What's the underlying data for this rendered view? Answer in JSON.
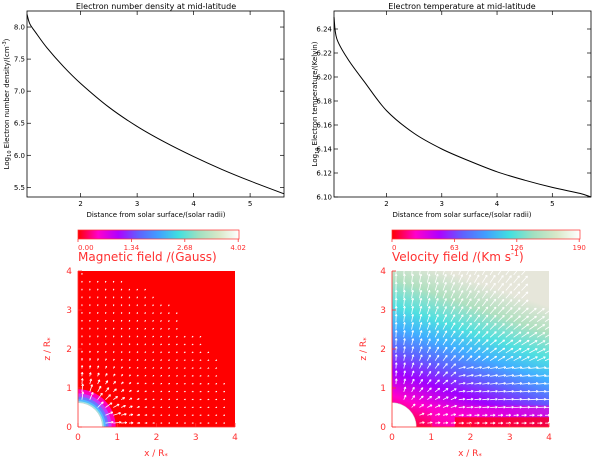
{
  "chart_data": [
    {
      "type": "line",
      "title": "Electron number density at mid-latitude",
      "xlabel": "Distance from solar surface/(solar radii)",
      "ylabel": "Log10 Electron number density/(cm^-3)",
      "xlim": [
        1.05,
        5.6
      ],
      "ylim": [
        5.35,
        8.25
      ],
      "xticks": [
        2,
        3,
        4,
        5
      ],
      "yticks": [
        5.5,
        6.0,
        6.5,
        7.0,
        7.5,
        8.0
      ],
      "x": [
        1.05,
        1.1,
        1.2,
        1.4,
        1.7,
        2.0,
        2.5,
        3.0,
        3.5,
        4.0,
        4.5,
        5.0,
        5.6
      ],
      "y": [
        8.2,
        8.05,
        7.92,
        7.68,
        7.38,
        7.12,
        6.75,
        6.45,
        6.2,
        5.98,
        5.78,
        5.6,
        5.4
      ],
      "series": [
        {
          "values": [
            8.2,
            8.05,
            7.92,
            7.68,
            7.38,
            7.12,
            6.75,
            6.45,
            6.2,
            5.98,
            5.78,
            5.6,
            5.4
          ]
        }
      ]
    },
    {
      "type": "line",
      "title": "Electron temperature at mid-latitude",
      "xlabel": "Distance from solar surface/(solar radii)",
      "ylabel": "Log10 Electron temperature/(Kelvin)",
      "xlim": [
        1.05,
        5.7
      ],
      "ylim": [
        6.1,
        6.255
      ],
      "xticks": [
        2,
        3,
        4,
        5
      ],
      "yticks": [
        6.1,
        6.12,
        6.14,
        6.16,
        6.18,
        6.2,
        6.22,
        6.24
      ],
      "x": [
        1.05,
        1.1,
        1.3,
        1.6,
        2.0,
        2.5,
        3.0,
        3.5,
        4.0,
        4.5,
        5.0,
        5.5,
        5.7
      ],
      "y": [
        6.25,
        6.232,
        6.215,
        6.196,
        6.172,
        6.153,
        6.14,
        6.13,
        6.121,
        6.114,
        6.108,
        6.103,
        6.1
      ],
      "series": [
        {
          "values": [
            6.25,
            6.232,
            6.215,
            6.196,
            6.172,
            6.153,
            6.14,
            6.13,
            6.121,
            6.114,
            6.108,
            6.103,
            6.1
          ]
        }
      ]
    },
    {
      "type": "heatmap",
      "title": "Magnetic field /(Gauss)",
      "xlabel": "x / R*",
      "ylabel": "z / R*",
      "xlim": [
        0,
        4
      ],
      "ylim": [
        0,
        4
      ],
      "xticks": [
        0,
        1,
        2,
        3,
        4
      ],
      "yticks": [
        0,
        1,
        2,
        3,
        4
      ],
      "colorbar": {
        "min": 0.0,
        "max": 4.02,
        "ticks": [
          "0.00",
          "1.34",
          "2.68",
          "4.02"
        ]
      }
    },
    {
      "type": "heatmap",
      "title": "Velocity field /(Km s^-1)",
      "xlabel": "x / R*",
      "ylabel": "z / R*",
      "xlim": [
        0,
        4
      ],
      "ylim": [
        0,
        4
      ],
      "xticks": [
        0,
        1,
        2,
        3,
        4
      ],
      "yticks": [
        0,
        1,
        2,
        3,
        4
      ],
      "colorbar": {
        "min": 0,
        "max": 190,
        "ticks": [
          "0",
          "63",
          "126",
          "190"
        ]
      }
    }
  ],
  "colors": {
    "panel_red": "#ff0000",
    "axis_red": "#ff3030",
    "arrow": "#ffffff",
    "colorbar_stops": [
      "#ff0000",
      "#ff00cc",
      "#b000ff",
      "#6060ff",
      "#40a0ff",
      "#40e0e0",
      "#a0e0c0",
      "#d8e8c8",
      "#ffffff"
    ]
  }
}
